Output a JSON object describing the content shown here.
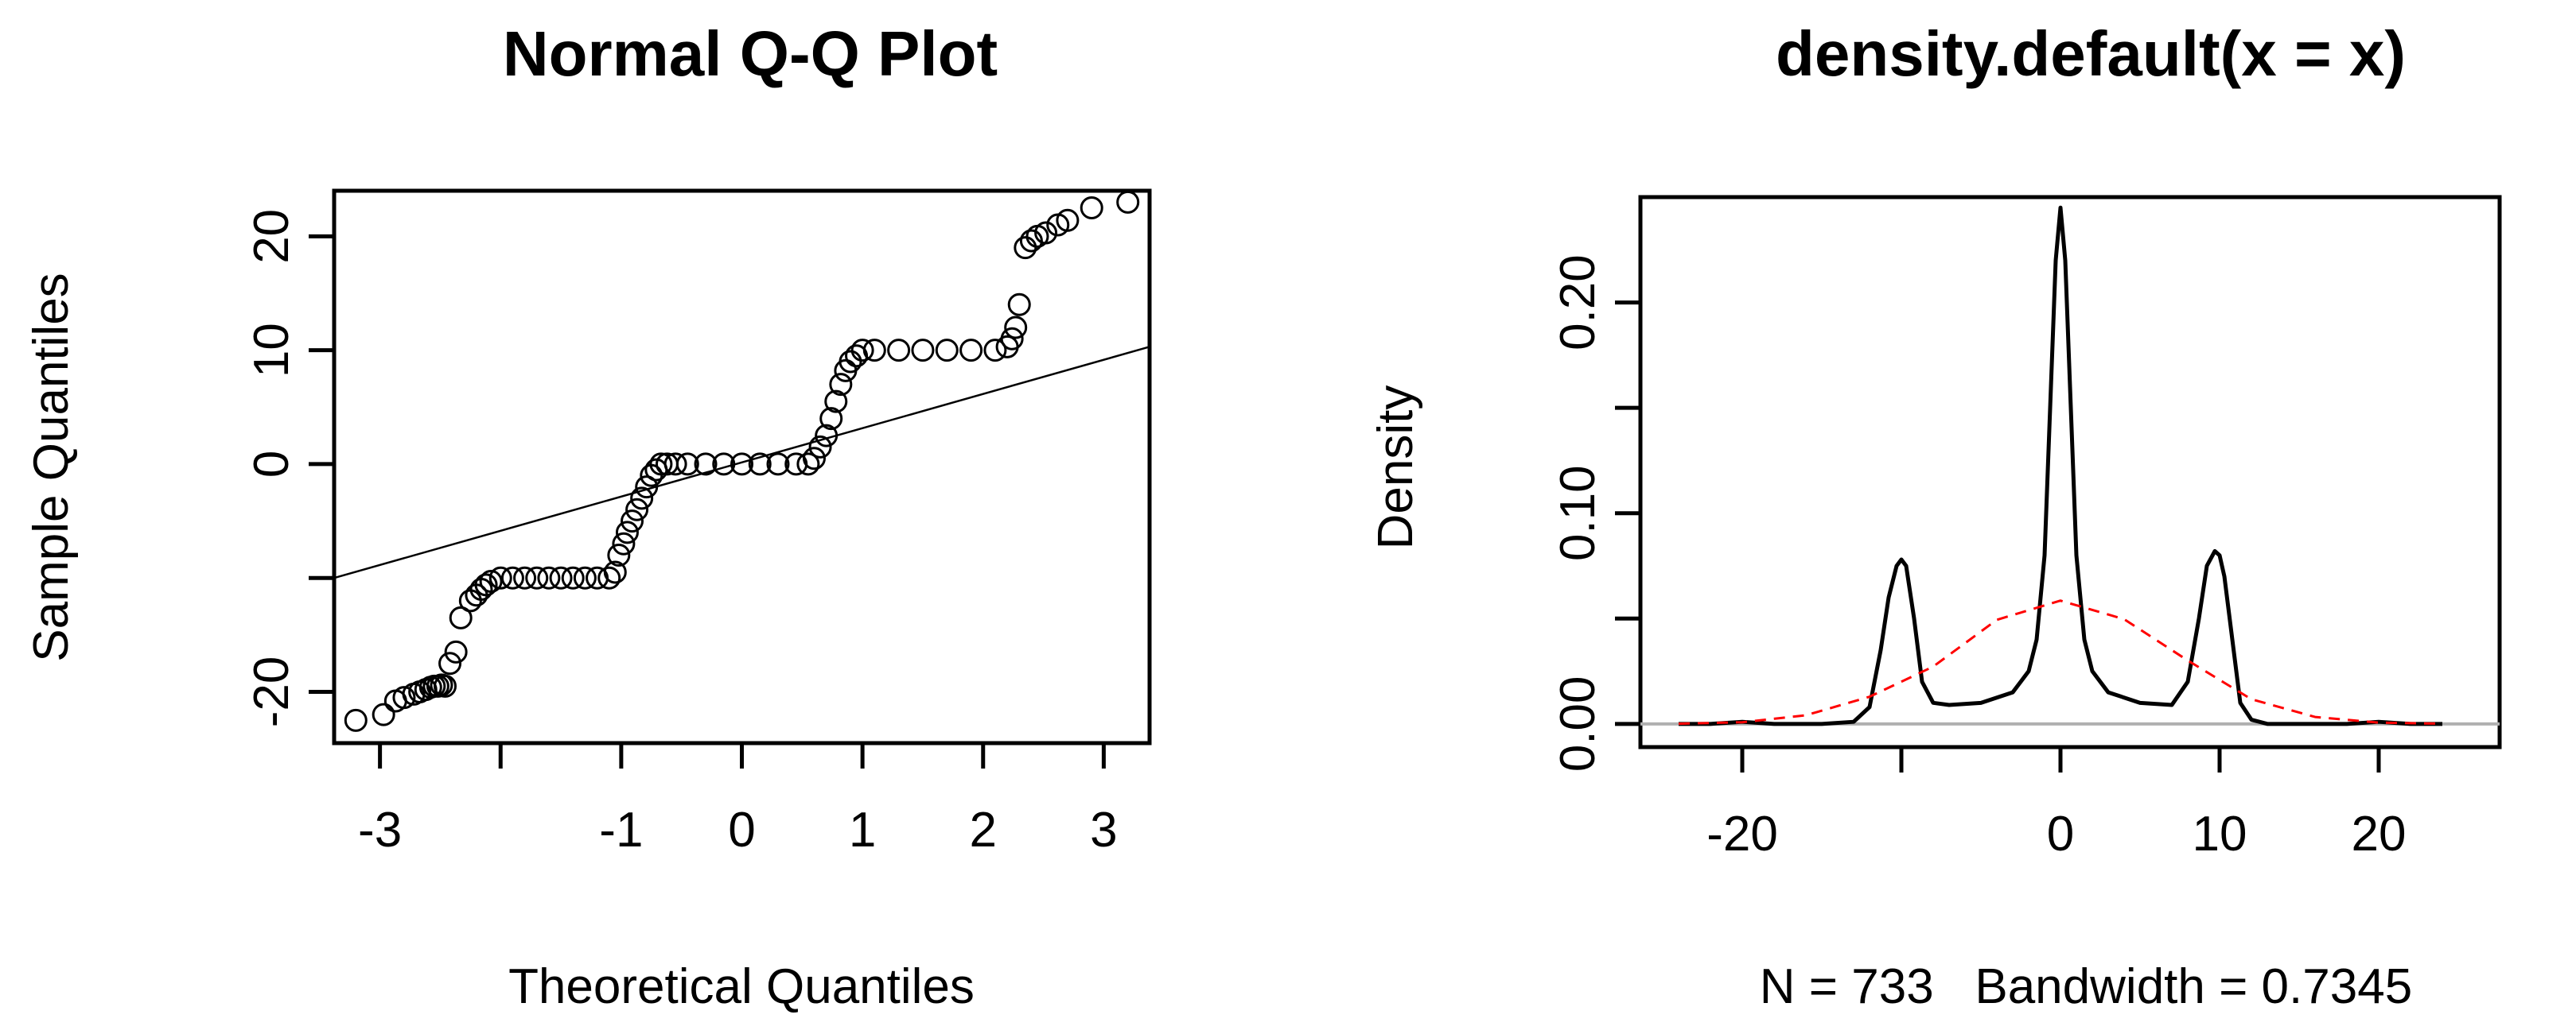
{
  "chart_data": [
    {
      "type": "scatter",
      "title": "Normal Q-Q Plot",
      "xlabel": "Theoretical Quantiles",
      "ylabel": "Sample Quantiles",
      "xlim": [
        -3.38,
        3.38
      ],
      "ylim": [
        -24.5,
        24.0
      ],
      "x_ticks": [
        -3,
        -2,
        -1,
        0,
        1,
        2,
        3
      ],
      "x_tick_labels": [
        "-3",
        "",
        "-1",
        "0",
        "1",
        "2",
        "3"
      ],
      "y_ticks": [
        -20,
        -10,
        0,
        10,
        20
      ],
      "y_tick_labels": [
        "-20",
        "",
        "0",
        "10",
        "20"
      ],
      "point_style": "open-circle",
      "reference_line": {
        "x": [
          -3.38,
          3.38
        ],
        "y": [
          -10.0,
          10.3
        ]
      },
      "series": [
        {
          "x": [
            -3.2,
            -2.97,
            -2.87,
            -2.8,
            -2.72,
            -2.67,
            -2.62,
            -2.58,
            -2.55,
            -2.52,
            -2.49,
            -2.46,
            -2.42,
            -2.37,
            -2.33,
            -2.25,
            -2.2,
            -2.16,
            -2.12,
            -2.08,
            -2.0,
            -1.9,
            -1.8,
            -1.7,
            -1.6,
            -1.5,
            -1.4,
            -1.3,
            -1.2,
            -1.1,
            -1.05,
            -1.02,
            -0.98,
            -0.95,
            -0.91,
            -0.87,
            -0.83,
            -0.79,
            -0.75,
            -0.71,
            -0.67,
            -0.62,
            -0.55,
            -0.45,
            -0.3,
            -0.15,
            0.0,
            0.15,
            0.3,
            0.45,
            0.55,
            0.6,
            0.65,
            0.7,
            0.74,
            0.78,
            0.82,
            0.86,
            0.9,
            0.95,
            1.0,
            1.1,
            1.3,
            1.5,
            1.7,
            1.9,
            2.1,
            2.2,
            2.24,
            2.27,
            2.3,
            2.35,
            2.4,
            2.45,
            2.52,
            2.62,
            2.7,
            2.9,
            3.2
          ],
          "y": [
            -22.5,
            -22.0,
            -20.8,
            -20.5,
            -20.2,
            -20.0,
            -19.8,
            -19.6,
            -19.5,
            -19.5,
            -19.4,
            -19.5,
            -17.5,
            -16.5,
            -13.5,
            -12.0,
            -11.5,
            -11.0,
            -10.6,
            -10.3,
            -10.0,
            -10.0,
            -10.0,
            -10.0,
            -10.0,
            -10.0,
            -10.0,
            -10.0,
            -10.0,
            -10.0,
            -9.5,
            -8.0,
            -7.0,
            -6.0,
            -5.0,
            -4.0,
            -3.0,
            -2.0,
            -1.0,
            -0.5,
            0.0,
            0.0,
            0.0,
            0.0,
            0.0,
            0.0,
            0.0,
            0.0,
            0.0,
            0.0,
            0.0,
            0.5,
            1.5,
            2.5,
            4.0,
            5.5,
            7.0,
            8.2,
            9.0,
            9.5,
            10.0,
            10.0,
            10.0,
            10.0,
            10.0,
            10.0,
            10.0,
            10.3,
            11.0,
            12.0,
            14.0,
            19.0,
            19.6,
            20.0,
            20.3,
            21.0,
            21.4,
            22.5,
            23.0
          ]
        }
      ]
    },
    {
      "type": "line",
      "title": "density.default(x = x)",
      "xlabel": "N = 733   Bandwidth = 0.7345",
      "ylabel": "Density",
      "xlim": [
        -26.4,
        27.6
      ],
      "ylim": [
        -0.011,
        0.25
      ],
      "x_ticks": [
        -20,
        -10,
        0,
        10,
        20
      ],
      "x_tick_labels": [
        "-20",
        "",
        "0",
        "10",
        "20"
      ],
      "y_ticks": [
        0.0,
        0.05,
        0.1,
        0.15,
        0.2
      ],
      "y_tick_labels": [
        "0.00",
        "",
        "0.10",
        "",
        "0.20"
      ],
      "baseline": 0.0,
      "series": [
        {
          "color": "#000000",
          "style": "solid",
          "x": [
            -24.0,
            -22.0,
            -20.0,
            -18.0,
            -15.0,
            -13.0,
            -12.0,
            -11.3,
            -10.8,
            -10.3,
            -10.0,
            -9.7,
            -9.2,
            -8.7,
            -8.0,
            -7.0,
            -5.0,
            -3.0,
            -2.0,
            -1.5,
            -1.0,
            -0.6,
            -0.3,
            0.0,
            0.3,
            0.6,
            1.0,
            1.5,
            2.0,
            3.0,
            5.0,
            7.0,
            8.0,
            8.7,
            9.2,
            9.7,
            10.0,
            10.3,
            10.8,
            11.3,
            12.0,
            13.0,
            15.0,
            18.0,
            20.0,
            22.0,
            24.0
          ],
          "y": [
            0.0,
            0.0,
            0.001,
            0.0,
            0.0,
            0.001,
            0.008,
            0.035,
            0.06,
            0.075,
            0.078,
            0.075,
            0.05,
            0.02,
            0.01,
            0.009,
            0.01,
            0.015,
            0.025,
            0.04,
            0.08,
            0.16,
            0.22,
            0.245,
            0.22,
            0.16,
            0.08,
            0.04,
            0.025,
            0.015,
            0.01,
            0.009,
            0.02,
            0.05,
            0.075,
            0.082,
            0.08,
            0.07,
            0.04,
            0.01,
            0.002,
            0.0,
            0.0,
            0.0,
            0.001,
            0.0,
            0.0
          ]
        },
        {
          "color": "#ff0000",
          "style": "dashed",
          "distribution": "normal",
          "mean": 0.2,
          "sd": 6.8,
          "x": [
            -24.0,
            -20.0,
            -16.0,
            -12.0,
            -8.0,
            -4.0,
            0.0,
            4.0,
            8.0,
            12.0,
            16.0,
            20.0,
            24.0
          ],
          "y": [
            0.0001,
            0.0008,
            0.0041,
            0.0129,
            0.0272,
            0.0494,
            0.0585,
            0.0497,
            0.0301,
            0.0117,
            0.0033,
            0.0006,
            0.0001
          ]
        }
      ]
    }
  ]
}
